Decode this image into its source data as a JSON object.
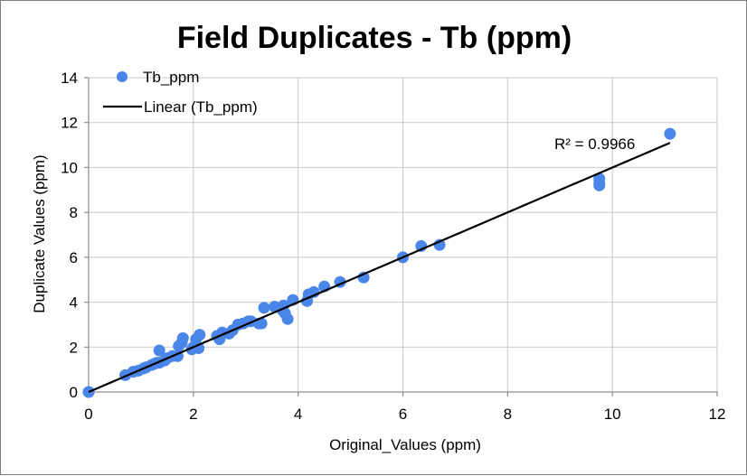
{
  "chart_data": {
    "type": "scatter",
    "title": "Field Duplicates  - Tb (ppm)",
    "xlabel": "Original_Values (ppm)",
    "ylabel": "Duplicate Values (ppm)",
    "xlim": [
      0,
      12
    ],
    "ylim": [
      0,
      14
    ],
    "xticks": [
      0,
      2,
      4,
      6,
      8,
      10,
      12
    ],
    "yticks": [
      0,
      2,
      4,
      6,
      8,
      10,
      12,
      14
    ],
    "grid": true,
    "legend_position": "top-left",
    "colors": {
      "marker": "#4a86e8",
      "trendline": "#000000",
      "grid": "#c8c8c8",
      "axis": "#8c8c8c"
    },
    "series": [
      {
        "name": "Tb_ppm",
        "x": [
          0,
          0,
          0.7,
          0.85,
          0.95,
          1.05,
          1.1,
          1.2,
          1.25,
          1.3,
          1.35,
          1.35,
          1.45,
          1.5,
          1.6,
          1.7,
          1.72,
          1.78,
          1.8,
          1.97,
          2.0,
          2.05,
          2.1,
          2.12,
          2.45,
          2.5,
          2.55,
          2.68,
          2.75,
          2.85,
          2.95,
          3.05,
          3.1,
          3.25,
          3.3,
          3.35,
          3.55,
          3.7,
          3.72,
          3.75,
          3.8,
          3.9,
          4.17,
          4.2,
          4.3,
          4.5,
          4.8,
          5.25,
          6.0,
          6.35,
          6.7,
          9.75,
          9.75,
          9.75,
          11.1
        ],
        "y": [
          0,
          0,
          0.75,
          0.9,
          0.95,
          1.05,
          1.1,
          1.2,
          1.25,
          1.3,
          1.85,
          1.3,
          1.4,
          1.5,
          1.6,
          1.6,
          2.05,
          2.2,
          2.4,
          1.9,
          2.0,
          2.35,
          1.95,
          2.55,
          2.5,
          2.35,
          2.65,
          2.6,
          2.75,
          3.0,
          3.05,
          3.15,
          3.15,
          3.05,
          3.05,
          3.75,
          3.8,
          3.65,
          3.85,
          3.5,
          3.25,
          4.1,
          4.05,
          4.35,
          4.45,
          4.7,
          4.9,
          5.1,
          6.0,
          6.5,
          6.55,
          9.2,
          9.3,
          9.5,
          11.5
        ]
      }
    ],
    "trendline": {
      "name": "Linear (Tb_ppm)",
      "type": "linear",
      "x": [
        0,
        11.1
      ],
      "y": [
        0,
        11.1
      ],
      "r2_label": "R² = 0.9966"
    }
  }
}
